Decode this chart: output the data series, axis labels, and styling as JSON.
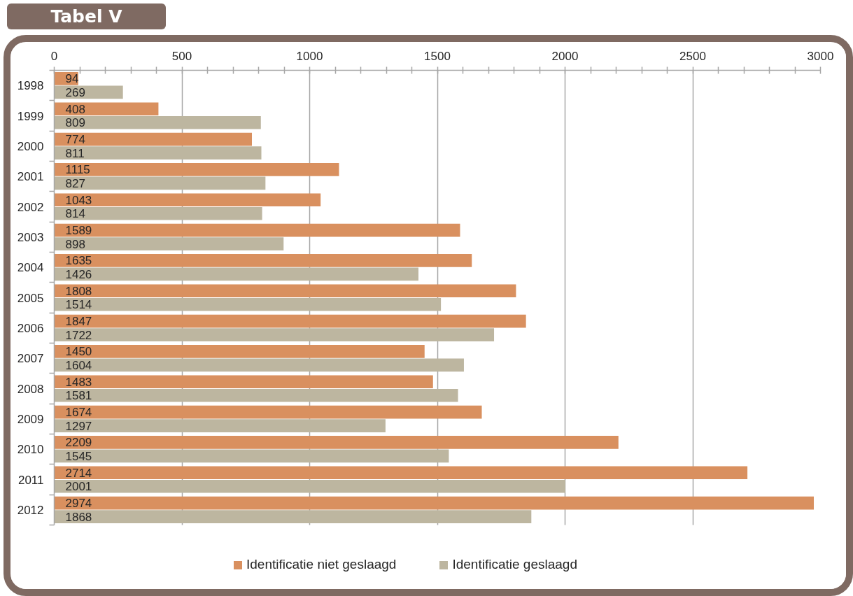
{
  "chart_data": {
    "type": "bar",
    "orientation": "horizontal",
    "title": "Tabel V",
    "categories": [
      "1998",
      "1999",
      "2000",
      "2001",
      "2002",
      "2003",
      "2004",
      "2005",
      "2006",
      "2007",
      "2008",
      "2009",
      "2010",
      "2011",
      "2012"
    ],
    "series": [
      {
        "name": "Identificatie niet geslaagd",
        "color": "#d9905f",
        "values": [
          94,
          408,
          774,
          1115,
          1043,
          1589,
          1635,
          1808,
          1847,
          1450,
          1483,
          1674,
          2209,
          2714,
          2974
        ]
      },
      {
        "name": "Identificatie geslaagd",
        "color": "#bdb6a0",
        "values": [
          269,
          809,
          811,
          827,
          814,
          898,
          1426,
          1514,
          1722,
          1604,
          1581,
          1297,
          1545,
          2001,
          1868
        ]
      }
    ],
    "xlim": [
      0,
      3000
    ],
    "xticks": [
      0,
      {
        "value": 100,
        "label": null
      },
      {
        "value": 200,
        "label": null
      },
      {
        "value": 300,
        "label": null
      },
      {
        "value": 400,
        "label": null
      },
      500,
      {
        "value": 600,
        "label": null
      },
      {
        "value": 700,
        "label": null
      },
      {
        "value": 800,
        "label": null
      },
      {
        "value": 900,
        "label": null
      },
      1000,
      {
        "value": 1100,
        "label": null
      },
      {
        "value": 1200,
        "label": null
      },
      {
        "value": 1300,
        "label": null
      },
      {
        "value": 1400,
        "label": null
      },
      1500,
      {
        "value": 1600,
        "label": null
      },
      {
        "value": 1700,
        "label": null
      },
      {
        "value": 1800,
        "label": null
      },
      {
        "value": 1900,
        "label": null
      },
      2000,
      {
        "value": 2100,
        "label": null
      },
      {
        "value": 2200,
        "label": null
      },
      {
        "value": 2300,
        "label": null
      },
      {
        "value": 2400,
        "label": null
      },
      2500,
      {
        "value": 2600,
        "label": null
      },
      {
        "value": 2700,
        "label": null
      },
      {
        "value": 2800,
        "label": null
      },
      {
        "value": 2900,
        "label": null
      },
      3000
    ],
    "grid": "x",
    "legend": "bottom",
    "data_labels": true
  }
}
